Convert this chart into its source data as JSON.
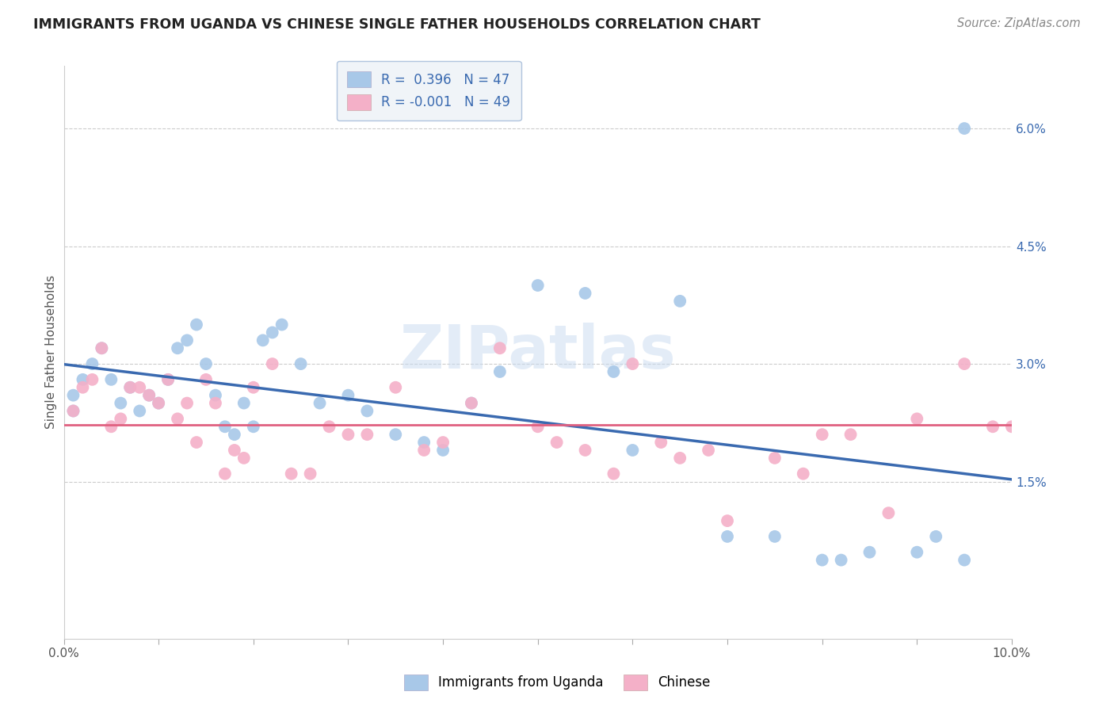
{
  "title": "IMMIGRANTS FROM UGANDA VS CHINESE SINGLE FATHER HOUSEHOLDS CORRELATION CHART",
  "source": "Source: ZipAtlas.com",
  "ylabel": "Single Father Households",
  "xlim": [
    0.0,
    0.1
  ],
  "ylim": [
    -0.005,
    0.068
  ],
  "y_ticks_right": [
    0.015,
    0.03,
    0.045,
    0.06
  ],
  "y_tick_labels_right": [
    "1.5%",
    "3.0%",
    "4.5%",
    "6.0%"
  ],
  "color_uganda": "#a8c8e8",
  "color_chinese": "#f4b0c8",
  "line_color_uganda": "#3a6ab0",
  "line_color_chinese": "#e06080",
  "watermark": "ZIPatlas",
  "uganda_x": [
    0.001,
    0.001,
    0.002,
    0.003,
    0.004,
    0.005,
    0.006,
    0.007,
    0.008,
    0.009,
    0.01,
    0.011,
    0.012,
    0.013,
    0.014,
    0.015,
    0.016,
    0.017,
    0.018,
    0.019,
    0.02,
    0.021,
    0.022,
    0.023,
    0.025,
    0.027,
    0.03,
    0.032,
    0.035,
    0.038,
    0.04,
    0.043,
    0.046,
    0.05,
    0.055,
    0.058,
    0.06,
    0.065,
    0.07,
    0.075,
    0.08,
    0.082,
    0.085,
    0.09,
    0.092,
    0.095,
    0.095
  ],
  "uganda_y": [
    0.026,
    0.024,
    0.028,
    0.03,
    0.032,
    0.028,
    0.025,
    0.027,
    0.024,
    0.026,
    0.025,
    0.028,
    0.032,
    0.033,
    0.035,
    0.03,
    0.026,
    0.022,
    0.021,
    0.025,
    0.022,
    0.033,
    0.034,
    0.035,
    0.03,
    0.025,
    0.026,
    0.024,
    0.021,
    0.02,
    0.019,
    0.025,
    0.029,
    0.04,
    0.039,
    0.029,
    0.019,
    0.038,
    0.008,
    0.008,
    0.005,
    0.005,
    0.006,
    0.006,
    0.008,
    0.005,
    0.06
  ],
  "chinese_x": [
    0.001,
    0.002,
    0.003,
    0.004,
    0.005,
    0.006,
    0.007,
    0.008,
    0.009,
    0.01,
    0.011,
    0.012,
    0.013,
    0.014,
    0.015,
    0.016,
    0.017,
    0.018,
    0.019,
    0.02,
    0.022,
    0.024,
    0.026,
    0.028,
    0.03,
    0.032,
    0.035,
    0.038,
    0.04,
    0.043,
    0.046,
    0.05,
    0.052,
    0.055,
    0.058,
    0.06,
    0.063,
    0.065,
    0.068,
    0.07,
    0.075,
    0.078,
    0.08,
    0.083,
    0.087,
    0.09,
    0.095,
    0.098,
    0.1
  ],
  "chinese_y": [
    0.024,
    0.027,
    0.028,
    0.032,
    0.022,
    0.023,
    0.027,
    0.027,
    0.026,
    0.025,
    0.028,
    0.023,
    0.025,
    0.02,
    0.028,
    0.025,
    0.016,
    0.019,
    0.018,
    0.027,
    0.03,
    0.016,
    0.016,
    0.022,
    0.021,
    0.021,
    0.027,
    0.019,
    0.02,
    0.025,
    0.032,
    0.022,
    0.02,
    0.019,
    0.016,
    0.03,
    0.02,
    0.018,
    0.019,
    0.01,
    0.018,
    0.016,
    0.021,
    0.021,
    0.011,
    0.023,
    0.03,
    0.022,
    0.022
  ],
  "uganda_R": 0.396,
  "chinese_R": -0.001
}
